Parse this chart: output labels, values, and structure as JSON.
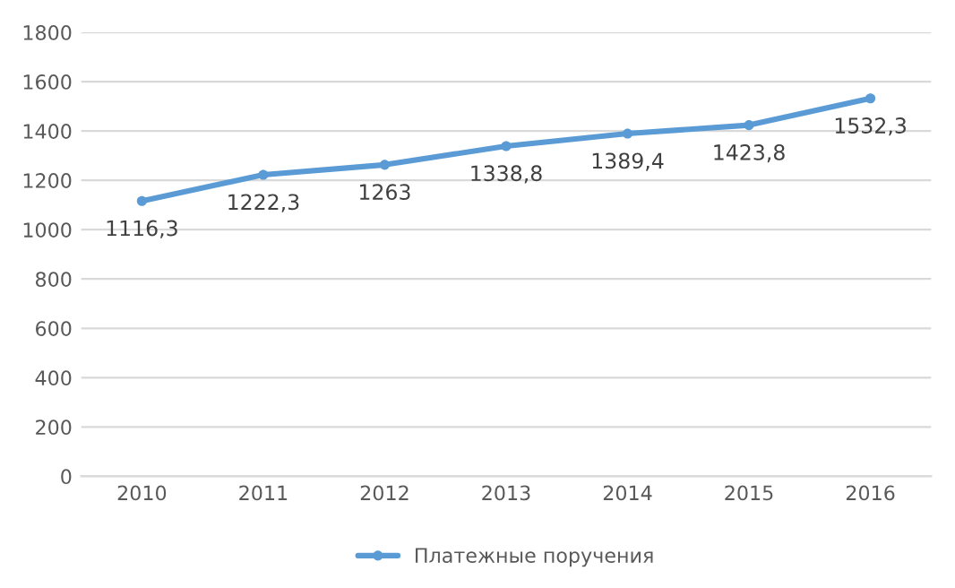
{
  "chart_data": {
    "type": "line",
    "categories": [
      "2010",
      "2011",
      "2012",
      "2013",
      "2014",
      "2015",
      "2016"
    ],
    "series": [
      {
        "name": "Платежные поручения",
        "color": "#5b9bd5",
        "values": [
          1116.3,
          1222.3,
          1263,
          1338.8,
          1389.4,
          1423.8,
          1532.3
        ],
        "value_labels": [
          "1116,3",
          "1222,3",
          "1263",
          "1338,8",
          "1389,4",
          "1423,8",
          "1532,3"
        ]
      }
    ],
    "ylim": [
      0,
      1800
    ],
    "yticks": [
      0,
      200,
      400,
      600,
      800,
      1000,
      1200,
      1400,
      1600,
      1800
    ],
    "grid": "y",
    "legend": "bottom",
    "marker": "circle",
    "line_style": "solid"
  }
}
